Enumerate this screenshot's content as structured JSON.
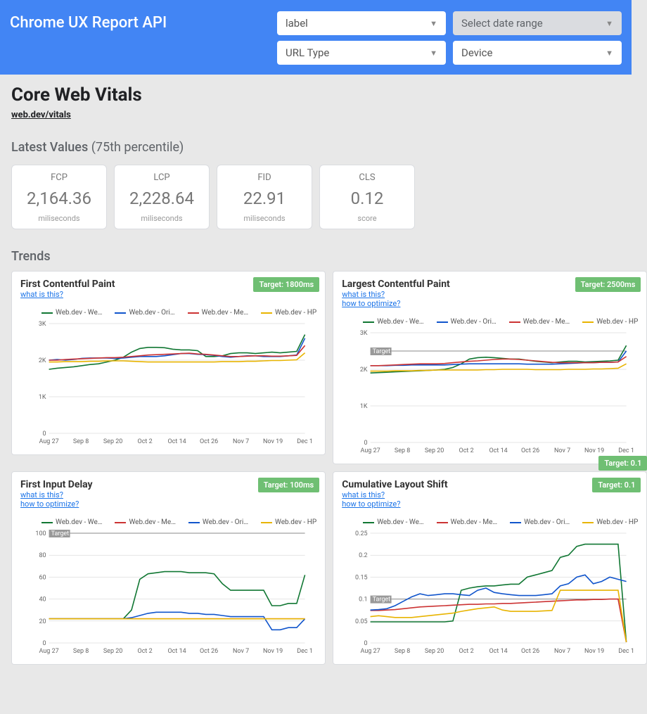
{
  "header": {
    "title": "Chrome UX Report API",
    "selects": [
      {
        "label": "label",
        "style": "white"
      },
      {
        "label": "Select date range",
        "style": "gray"
      },
      {
        "label": "URL Type",
        "style": "white"
      },
      {
        "label": "Device",
        "style": "white"
      }
    ]
  },
  "page": {
    "title": "Core Web Vitals",
    "link": "web.dev/vitals",
    "latest_label": "Latest Values",
    "latest_sub": "(75th percentile)"
  },
  "cards": [
    {
      "label": "FCP",
      "value": "2,164.36",
      "unit": "miliseconds"
    },
    {
      "label": "LCP",
      "value": "2,228.64",
      "unit": "miliseconds"
    },
    {
      "label": "FID",
      "value": "22.91",
      "unit": "miliseconds"
    },
    {
      "label": "CLS",
      "value": "0.12",
      "unit": "score"
    }
  ],
  "trends_label": "Trends",
  "series_colors": {
    "we": "#117733",
    "ori": "#1155cc",
    "me": "#cc3333",
    "hp": "#e8b400"
  },
  "legend_labels": [
    "Web.dev - We…",
    "Web.dev - Ori…",
    "Web.dev - Me…",
    "Web.dev - HP"
  ],
  "legend_keys_default": [
    "we",
    "ori",
    "me",
    "hp"
  ],
  "x_ticks": [
    "Aug 27",
    "Sep 8",
    "Sep 20",
    "Oct 2",
    "Oct 14",
    "Oct 26",
    "Nov 7",
    "Nov 19",
    "Dec 1"
  ],
  "charts": {
    "fcp": {
      "title": "First Contentful Paint",
      "links": [
        "what is this?"
      ],
      "target": "Target: 1800ms",
      "ylim": [
        0,
        3000
      ],
      "yticks": [
        0,
        1000,
        2000,
        3000
      ],
      "ylabels": [
        "0",
        "1K",
        "2K",
        "3K"
      ],
      "target_line": null,
      "legend_order": [
        "we",
        "ori",
        "me",
        "hp"
      ],
      "data": {
        "we": [
          1750,
          1780,
          1800,
          1820,
          1850,
          1880,
          1900,
          1950,
          2000,
          2080,
          2220,
          2320,
          2350,
          2350,
          2340,
          2300,
          2280,
          2280,
          2260,
          2100,
          2100,
          2120,
          2180,
          2200,
          2200,
          2180,
          2200,
          2220,
          2200,
          2220,
          2240,
          2700
        ],
        "ori": [
          2000,
          2020,
          2000,
          2020,
          2050,
          2060,
          2060,
          2060,
          2050,
          2060,
          2080,
          2100,
          2100,
          2100,
          2120,
          2150,
          2180,
          2180,
          2160,
          2150,
          2130,
          2100,
          2080,
          2100,
          2120,
          2120,
          2100,
          2100,
          2100,
          2120,
          2140,
          2600
        ],
        "me": [
          2000,
          2000,
          2020,
          2030,
          2040,
          2050,
          2060,
          2070,
          2070,
          2080,
          2100,
          2120,
          2140,
          2150,
          2160,
          2170,
          2180,
          2190,
          2170,
          2160,
          2140,
          2120,
          2100,
          2100,
          2110,
          2120,
          2120,
          2110,
          2110,
          2120,
          2130,
          2400
        ],
        "hp": [
          1950,
          1950,
          1960,
          1960,
          1960,
          1970,
          1970,
          1980,
          1980,
          1980,
          1970,
          1960,
          1950,
          1950,
          1950,
          1950,
          1950,
          1950,
          1950,
          1950,
          1950,
          1960,
          1960,
          1960,
          1970,
          1970,
          1980,
          1990,
          1990,
          2000,
          2010,
          2200
        ]
      }
    },
    "lcp": {
      "title": "Largest Contentful Paint",
      "links": [
        "what is this?",
        "how to optimize?"
      ],
      "target": "Target: 2500ms",
      "ylim": [
        0,
        3000
      ],
      "yticks": [
        0,
        1000,
        2000,
        3000
      ],
      "ylabels": [
        "0",
        "1K",
        "2K",
        "3K"
      ],
      "target_line": 2500,
      "legend_order": [
        "we",
        "ori",
        "me",
        "hp"
      ],
      "data": {
        "we": [
          1900,
          1910,
          1920,
          1930,
          1940,
          1950,
          1960,
          1970,
          1980,
          2000,
          2050,
          2150,
          2280,
          2320,
          2330,
          2320,
          2300,
          2280,
          2280,
          2250,
          2220,
          2200,
          2180,
          2200,
          2220,
          2220,
          2200,
          2210,
          2220,
          2230,
          2250,
          2650
        ],
        "ori": [
          2100,
          2100,
          2100,
          2110,
          2110,
          2120,
          2120,
          2120,
          2120,
          2120,
          2130,
          2140,
          2150,
          2150,
          2150,
          2150,
          2150,
          2150,
          2150,
          2140,
          2140,
          2140,
          2140,
          2150,
          2160,
          2170,
          2180,
          2180,
          2190,
          2190,
          2200,
          2500
        ],
        "me": [
          2100,
          2100,
          2110,
          2120,
          2130,
          2140,
          2150,
          2150,
          2150,
          2160,
          2180,
          2200,
          2220,
          2230,
          2250,
          2270,
          2280,
          2280,
          2270,
          2250,
          2230,
          2210,
          2190,
          2180,
          2180,
          2180,
          2180,
          2180,
          2190,
          2190,
          2200,
          2350
        ],
        "hp": [
          1950,
          1950,
          1950,
          1960,
          1960,
          1960,
          1970,
          1970,
          1980,
          1980,
          1980,
          1980,
          1980,
          1980,
          1990,
          1990,
          2000,
          2000,
          2000,
          2000,
          1990,
          1990,
          1990,
          1990,
          2000,
          2000,
          2000,
          2010,
          2010,
          2020,
          2030,
          2150
        ]
      }
    },
    "fid": {
      "title": "First Input Delay",
      "links": [
        "what is this?",
        "how to optimize?"
      ],
      "target": "Target: 100ms",
      "ylim": [
        0,
        100
      ],
      "yticks": [
        0,
        20,
        40,
        60,
        80,
        100
      ],
      "ylabels": [
        "0",
        "20",
        "40",
        "60",
        "80",
        "100"
      ],
      "target_line": 100,
      "legend_order": [
        "we",
        "me",
        "ori",
        "hp"
      ],
      "data": {
        "we": [
          22,
          22,
          22,
          22,
          22,
          22,
          22,
          22,
          22,
          22,
          30,
          58,
          63,
          64,
          65,
          65,
          65,
          64,
          64,
          64,
          63,
          54,
          48,
          48,
          48,
          48,
          48,
          34,
          34,
          36,
          36,
          62
        ],
        "me": [
          22,
          22,
          22,
          22,
          22,
          22,
          22,
          22,
          22,
          22,
          22,
          22,
          22,
          22,
          22,
          22,
          22,
          22,
          22,
          22,
          22,
          22,
          22,
          22,
          22,
          22,
          22,
          22,
          22,
          22,
          22,
          22
        ],
        "ori": [
          22,
          22,
          22,
          22,
          22,
          22,
          22,
          22,
          22,
          22,
          23,
          25,
          27,
          28,
          28,
          28,
          28,
          27,
          27,
          26,
          26,
          25,
          24,
          24,
          24,
          24,
          24,
          12,
          12,
          14,
          14,
          22
        ],
        "hp": [
          22,
          22,
          22,
          22,
          22,
          22,
          22,
          22,
          22,
          22,
          22,
          22,
          22,
          22,
          22,
          22,
          22,
          22,
          22,
          22,
          22,
          22,
          22,
          22,
          22,
          22,
          22,
          22,
          22,
          22,
          22,
          22
        ]
      }
    },
    "cls": {
      "title": "Cumulative Layout Shift",
      "links": [
        "what is this?",
        "how to optimize?"
      ],
      "target": "Target: 0.1",
      "outer_target": true,
      "ylim": [
        0,
        0.25
      ],
      "yticks": [
        0,
        0.05,
        0.1,
        0.15,
        0.2,
        0.25
      ],
      "ylabels": [
        "0",
        "0.05",
        "0.1",
        "0.15",
        "0.2",
        "0.25"
      ],
      "target_line": 0.1,
      "legend_order": [
        "we",
        "me",
        "ori",
        "hp"
      ],
      "data": {
        "we": [
          0.048,
          0.048,
          0.048,
          0.048,
          0.048,
          0.048,
          0.048,
          0.048,
          0.048,
          0.048,
          0.05,
          0.12,
          0.125,
          0.128,
          0.13,
          0.13,
          0.132,
          0.134,
          0.134,
          0.15,
          0.155,
          0.16,
          0.165,
          0.195,
          0.2,
          0.22,
          0.225,
          0.225,
          0.225,
          0.225,
          0.225,
          0.002
        ],
        "me": [
          0.074,
          0.074,
          0.075,
          0.076,
          0.078,
          0.08,
          0.082,
          0.083,
          0.084,
          0.085,
          0.086,
          0.087,
          0.088,
          0.088,
          0.089,
          0.089,
          0.09,
          0.09,
          0.091,
          0.092,
          0.093,
          0.094,
          0.095,
          0.096,
          0.097,
          0.098,
          0.098,
          0.099,
          0.099,
          0.1,
          0.1,
          0.002
        ],
        "ori": [
          0.075,
          0.076,
          0.078,
          0.085,
          0.095,
          0.105,
          0.112,
          0.108,
          0.11,
          0.112,
          0.112,
          0.11,
          0.108,
          0.12,
          0.125,
          0.115,
          0.112,
          0.11,
          0.108,
          0.108,
          0.108,
          0.11,
          0.112,
          0.13,
          0.135,
          0.15,
          0.155,
          0.135,
          0.14,
          0.15,
          0.145,
          0.14
        ],
        "hp": [
          0.06,
          0.062,
          0.06,
          0.058,
          0.058,
          0.058,
          0.06,
          0.062,
          0.064,
          0.066,
          0.068,
          0.072,
          0.075,
          0.078,
          0.08,
          0.082,
          0.075,
          0.072,
          0.072,
          0.072,
          0.072,
          0.073,
          0.074,
          0.12,
          0.12,
          0.12,
          0.12,
          0.12,
          0.12,
          0.12,
          0.12,
          0.002
        ]
      }
    }
  }
}
